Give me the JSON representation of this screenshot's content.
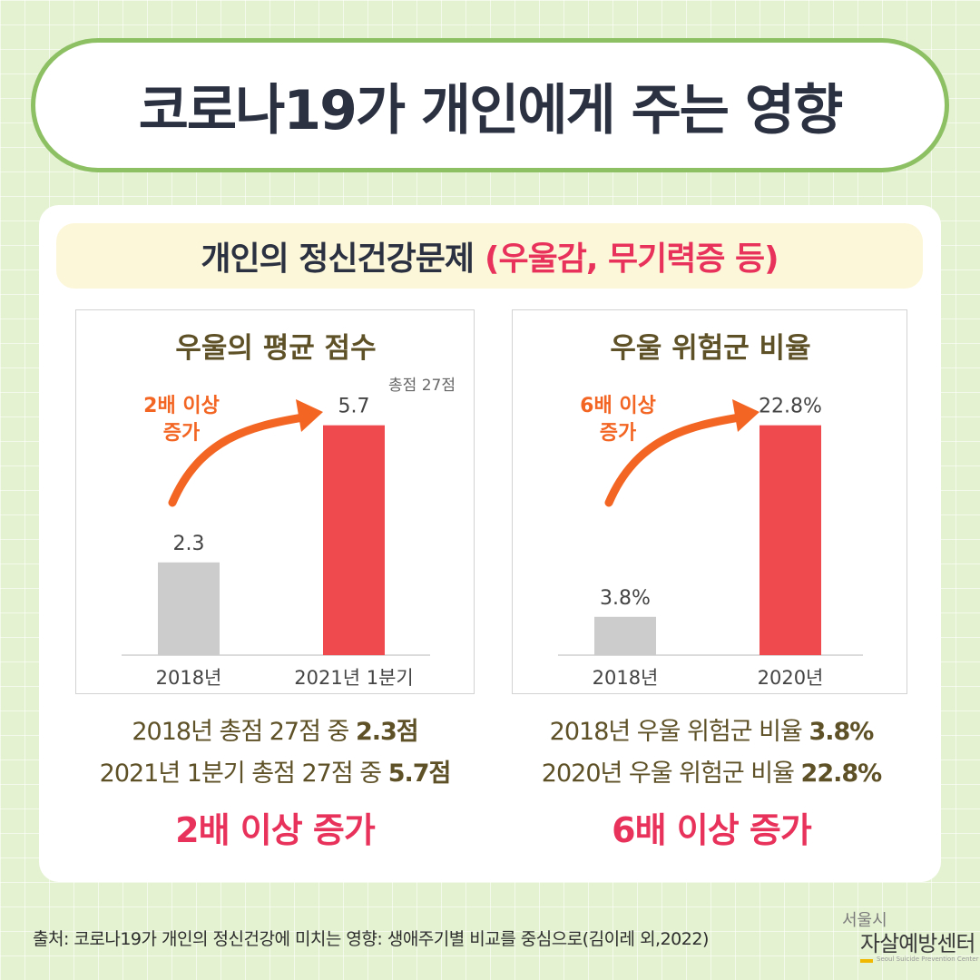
{
  "title": "코로나19가 개인에게 주는 영향",
  "subtitle": {
    "main": "개인의 정신건강문제",
    "accent": "(우울감, 무기력증 등)"
  },
  "colors": {
    "accent": "#e8325b",
    "arrow": "#f26522",
    "bar_before": "#cccccc",
    "bar_after": "#ef4b4f",
    "pill_border": "#8dbf63"
  },
  "chart_data": [
    {
      "type": "bar",
      "title": "우울의 평균 점수",
      "note": "총점 27점",
      "categories": [
        "2018년",
        "2021년 1분기"
      ],
      "values": [
        2.3,
        5.7
      ],
      "value_labels": [
        "2.3",
        "5.7"
      ],
      "ylim": [
        0,
        6.3
      ],
      "annotation": "2배 이상\n증가",
      "annotation_lines": [
        "2배 이상",
        "증가"
      ]
    },
    {
      "type": "bar",
      "title": "우울 위험군 비율",
      "categories": [
        "2018년",
        "2020년"
      ],
      "values": [
        3.8,
        22.8
      ],
      "value_labels": [
        "3.8%",
        "22.8%"
      ],
      "ylim": [
        0,
        25.2
      ],
      "annotation": "6배 이상\n증가",
      "annotation_lines": [
        "6배 이상",
        "증가"
      ]
    }
  ],
  "summary_left": {
    "line1_text": "2018년 총점 27점 중 ",
    "line1_bold": "2.3점",
    "line2_text": "2021년 1분기 총점 27점 중  ",
    "line2_bold": "5.7점",
    "highlight": "2배 이상 증가"
  },
  "summary_right": {
    "line1_text": "2018년 우울 위험군 비율  ",
    "line1_bold": "3.8%",
    "line2_text": "2020년 우울 위험군 비율 ",
    "line2_bold": "22.8%",
    "highlight": "6배 이상 증가"
  },
  "source": "출처: 코로나19가 개인의 정신건강에 미치는 영향: 생애주기별 비교를 중심으로(김이레 외,2022)",
  "logo": {
    "city": "서울시",
    "org": "자살예방센터",
    "eng": "Seoul Suicide Prevention Center"
  }
}
